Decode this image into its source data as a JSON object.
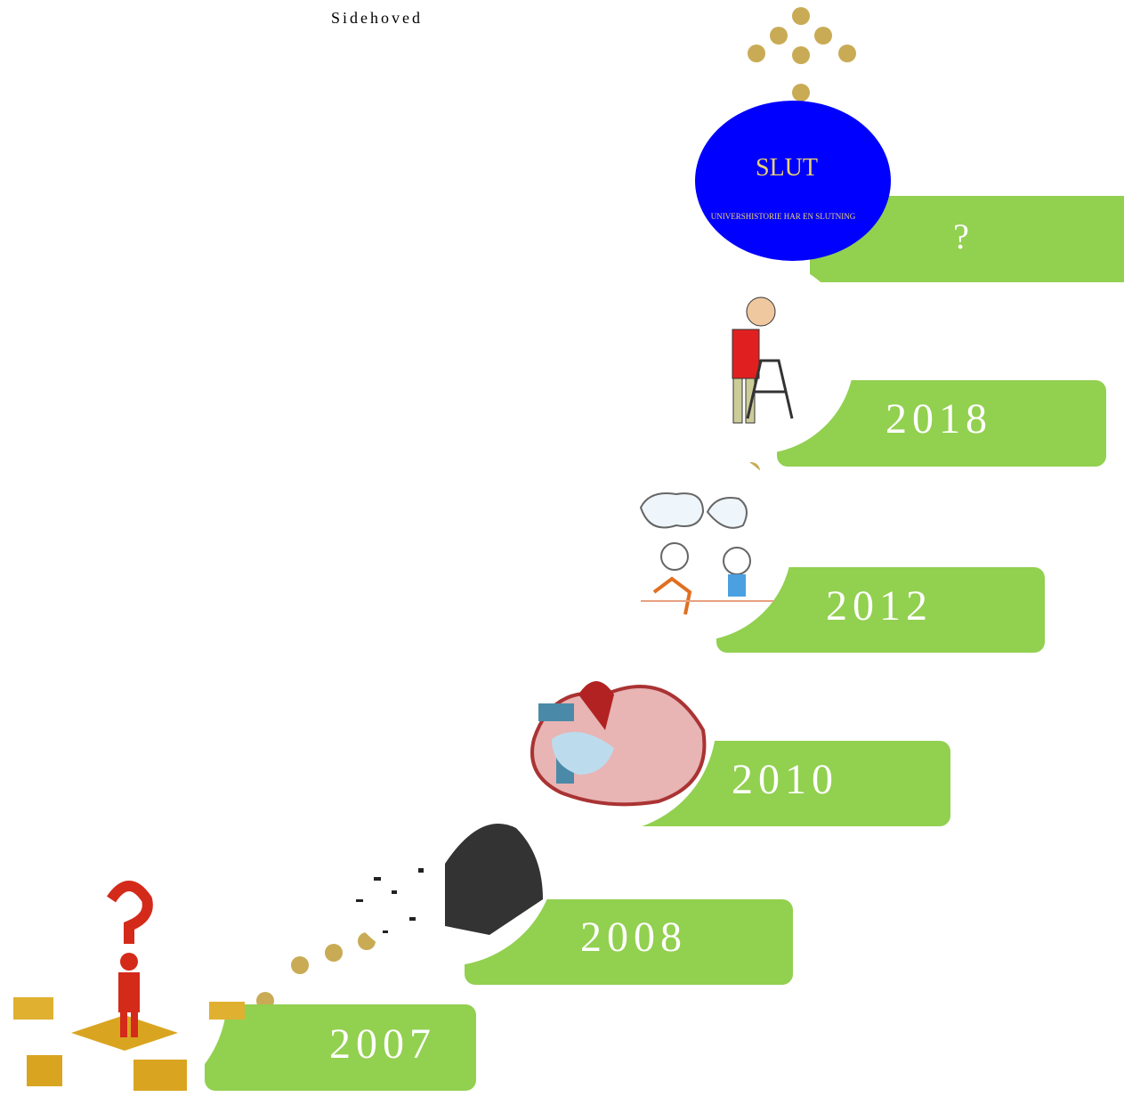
{
  "header": {
    "text": "Sidehoved"
  },
  "steps": [
    {
      "label": "2007"
    },
    {
      "label": "2008"
    },
    {
      "label": "2010"
    },
    {
      "label": "2012"
    },
    {
      "label": "2018"
    },
    {
      "label": "?"
    }
  ],
  "end": {
    "title": "SLUT",
    "caption": "UNIVERSHISTORIE HAR EN SLUTNING"
  }
}
